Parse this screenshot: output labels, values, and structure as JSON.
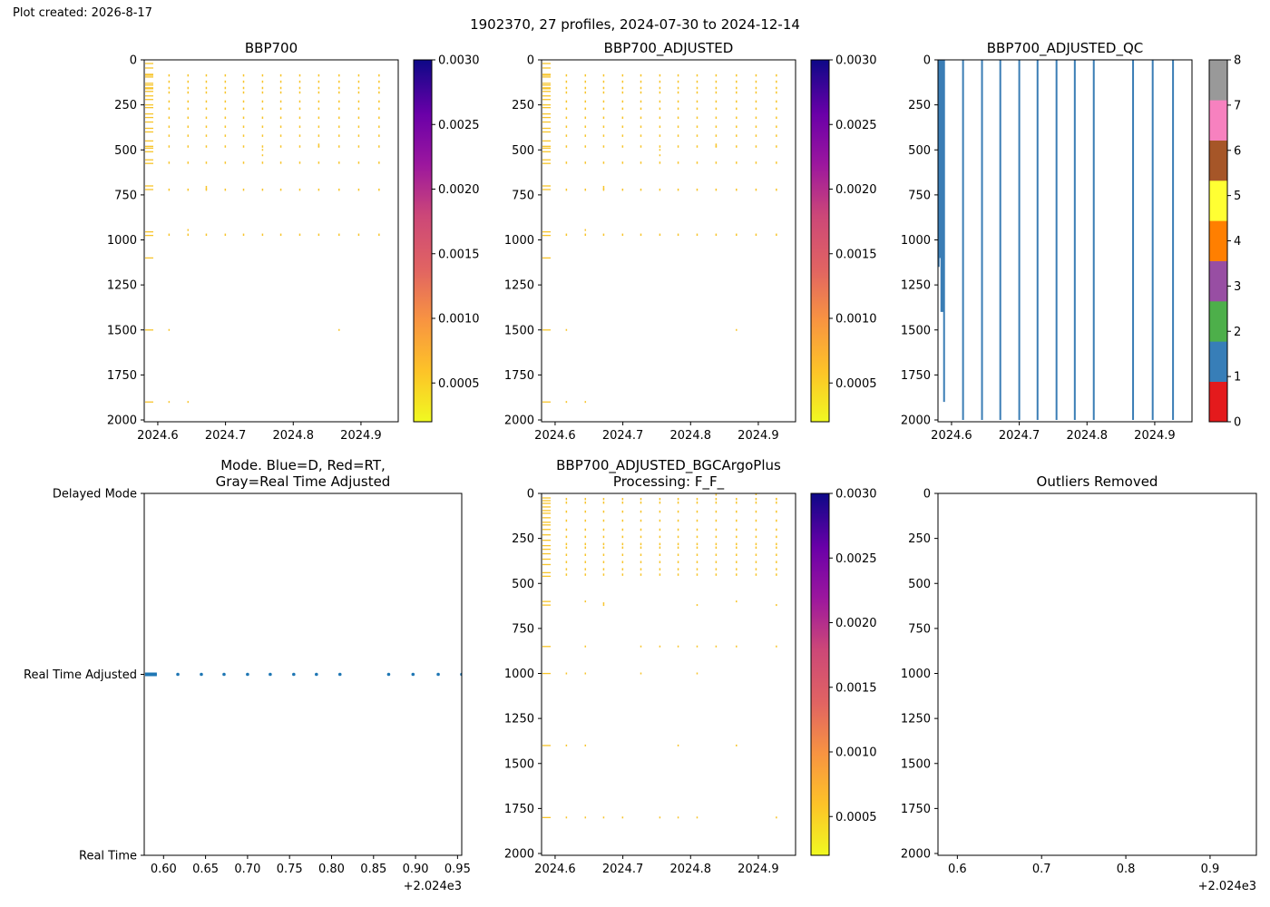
{
  "header": {
    "created": "Plot created: 2026-8-17",
    "suptitle": "1902370, 27 profiles, 2024-07-30 to 2024-12-14"
  },
  "colors": {
    "axis": "#000000",
    "data_yellow": "#f7c42a",
    "mode_blue": "#1f77b4",
    "qc_line": "#3a7db5"
  },
  "chart_data": [
    {
      "id": "bbp700",
      "type": "heatmap",
      "title": "BBP700",
      "xlim": [
        2024.58,
        2024.955
      ],
      "ylim": [
        2010,
        0
      ],
      "x_ticks": [
        2024.6,
        2024.7,
        2024.8,
        2024.9
      ],
      "x_tick_labels": [
        "2024.6",
        "2024.7",
        "2024.8",
        "2024.9"
      ],
      "y_ticks": [
        0,
        250,
        500,
        750,
        1000,
        1250,
        1500,
        1750,
        2000
      ],
      "y_tick_labels": [
        "0",
        "250",
        "500",
        "750",
        "1000",
        "1250",
        "1500",
        "1750",
        "2000"
      ],
      "colorbar": {
        "colormap": "plasma_r",
        "range": [
          0.0002,
          0.003
        ],
        "ticks": [
          0.0005,
          0.001,
          0.0015,
          0.002,
          0.0025,
          0.003
        ],
        "tick_labels": [
          "0.0005",
          "0.0010",
          "0.0015",
          "0.0020",
          "0.0025",
          "0.0030"
        ]
      },
      "profile_dates": [
        2024.617,
        2024.645,
        2024.672,
        2024.7,
        2024.727,
        2024.755,
        2024.782,
        2024.81,
        2024.838,
        2024.868,
        2024.897,
        2024.927
      ],
      "profile_depths": [
        85,
        120,
        155,
        180,
        230,
        270,
        320,
        370,
        420,
        480,
        570,
        720,
        970
      ],
      "dense_depths": [
        20,
        45,
        80,
        85,
        95,
        130,
        140,
        155,
        160,
        175,
        200,
        220,
        250,
        265,
        300,
        320,
        345,
        380,
        400,
        450,
        480,
        490,
        510,
        555,
        575,
        700,
        720,
        955,
        975,
        1100,
        1500,
        1900
      ],
      "extra_points": [
        [
          2024.617,
          1500
        ],
        [
          2024.617,
          1900
        ],
        [
          2024.645,
          1900
        ],
        [
          2024.868,
          1500
        ],
        [
          2024.645,
          945
        ],
        [
          2024.755,
          500
        ],
        [
          2024.755,
          530
        ],
        [
          2024.838,
          470
        ],
        [
          2024.838,
          480
        ],
        [
          2024.672,
          705
        ],
        [
          2024.672,
          715
        ]
      ]
    },
    {
      "id": "bbp700_adjusted",
      "type": "heatmap",
      "title": "BBP700_ADJUSTED",
      "xlim": [
        2024.58,
        2024.955
      ],
      "ylim": [
        2010,
        0
      ],
      "x_ticks": [
        2024.6,
        2024.7,
        2024.8,
        2024.9
      ],
      "x_tick_labels": [
        "2024.6",
        "2024.7",
        "2024.8",
        "2024.9"
      ],
      "y_ticks": [
        0,
        250,
        500,
        750,
        1000,
        1250,
        1500,
        1750,
        2000
      ],
      "y_tick_labels": [
        "0",
        "250",
        "500",
        "750",
        "1000",
        "1250",
        "1500",
        "1750",
        "2000"
      ],
      "colorbar": {
        "colormap": "plasma_r",
        "range": [
          0.0002,
          0.003
        ],
        "ticks": [
          0.0005,
          0.001,
          0.0015,
          0.002,
          0.0025,
          0.003
        ],
        "tick_labels": [
          "0.0005",
          "0.0010",
          "0.0015",
          "0.0020",
          "0.0025",
          "0.0030"
        ]
      },
      "profile_dates": [
        2024.617,
        2024.645,
        2024.672,
        2024.7,
        2024.727,
        2024.755,
        2024.782,
        2024.81,
        2024.838,
        2024.868,
        2024.897,
        2024.927
      ],
      "profile_depths": [
        85,
        120,
        155,
        180,
        230,
        270,
        320,
        370,
        420,
        480,
        570,
        720,
        970
      ],
      "dense_depths": [
        20,
        45,
        80,
        85,
        95,
        130,
        140,
        155,
        160,
        175,
        200,
        220,
        250,
        265,
        300,
        320,
        345,
        380,
        400,
        450,
        480,
        490,
        510,
        555,
        575,
        700,
        720,
        955,
        975,
        1100,
        1500,
        1900
      ],
      "extra_points": [
        [
          2024.617,
          1500
        ],
        [
          2024.617,
          1900
        ],
        [
          2024.645,
          1900
        ],
        [
          2024.868,
          1500
        ],
        [
          2024.645,
          945
        ],
        [
          2024.755,
          500
        ],
        [
          2024.755,
          530
        ],
        [
          2024.838,
          470
        ],
        [
          2024.838,
          480
        ],
        [
          2024.672,
          705
        ],
        [
          2024.672,
          715
        ]
      ]
    },
    {
      "id": "bbp700_adjusted_qc",
      "type": "line",
      "title": "BBP700_ADJUSTED_QC",
      "xlim": [
        2024.58,
        2024.955
      ],
      "ylim": [
        2010,
        0
      ],
      "x_ticks": [
        2024.6,
        2024.7,
        2024.8,
        2024.9
      ],
      "x_tick_labels": [
        "2024.6",
        "2024.7",
        "2024.8",
        "2024.9"
      ],
      "y_ticks": [
        0,
        250,
        500,
        750,
        1000,
        1250,
        1500,
        1750,
        2000
      ],
      "y_tick_labels": [
        "0",
        "250",
        "500",
        "750",
        "1000",
        "1250",
        "1500",
        "1750",
        "2000"
      ],
      "qc_profiles": [
        [
          2024.581,
          1150
        ],
        [
          2024.583,
          1100
        ],
        [
          2024.585,
          1400
        ],
        [
          2024.587,
          1400
        ],
        [
          2024.589,
          1900
        ],
        [
          2024.617,
          2000
        ],
        [
          2024.645,
          2000
        ],
        [
          2024.672,
          2000
        ],
        [
          2024.7,
          2000
        ],
        [
          2024.727,
          2000
        ],
        [
          2024.755,
          2000
        ],
        [
          2024.782,
          2000
        ],
        [
          2024.81,
          2000
        ],
        [
          2024.868,
          2000
        ],
        [
          2024.897,
          2000
        ],
        [
          2024.927,
          2000
        ]
      ],
      "colorbar": {
        "type": "discrete",
        "range": [
          0,
          8
        ],
        "ticks": [
          0,
          1,
          2,
          3,
          4,
          5,
          6,
          7,
          8
        ],
        "tick_labels": [
          "0",
          "1",
          "2",
          "3",
          "4",
          "5",
          "6",
          "7",
          "8"
        ],
        "colors": [
          "#e41a1c",
          "#377eb8",
          "#4daf4a",
          "#984ea3",
          "#ff7f00",
          "#ffff33",
          "#a65628",
          "#f781bf",
          "#999999"
        ]
      }
    },
    {
      "id": "mode",
      "type": "scatter",
      "title": "Mode. Blue=D, Red=RT,\nGray=Real Time Adjusted",
      "xlim": [
        0.577,
        0.955
      ],
      "ylim": [
        0,
        2
      ],
      "x_ticks": [
        0.6,
        0.65,
        0.7,
        0.75,
        0.8,
        0.85,
        0.9,
        0.95
      ],
      "x_tick_labels": [
        "0.60",
        "0.65",
        "0.70",
        "0.75",
        "0.80",
        "0.85",
        "0.90",
        "0.95"
      ],
      "x_offset_label": "+2.024e3",
      "y_ticks": [
        0,
        1,
        2
      ],
      "y_tick_labels": [
        "Real Time",
        "Real Time Adjusted",
        "Delayed Mode"
      ],
      "x": [
        0.58,
        0.582,
        0.584,
        0.586,
        0.588,
        0.59,
        0.617,
        0.645,
        0.672,
        0.7,
        0.727,
        0.755,
        0.782,
        0.81,
        0.868,
        0.897,
        0.927,
        0.955
      ],
      "y": [
        1,
        1,
        1,
        1,
        1,
        1,
        1,
        1,
        1,
        1,
        1,
        1,
        1,
        1,
        1,
        1,
        1,
        1
      ]
    },
    {
      "id": "bgcargoplus",
      "type": "heatmap",
      "title": "BBP700_ADJUSTED_BGCArgoPlus\nProcessing: F_F_",
      "xlim": [
        2024.58,
        2024.955
      ],
      "ylim": [
        2010,
        0
      ],
      "x_ticks": [
        2024.6,
        2024.7,
        2024.8,
        2024.9
      ],
      "x_tick_labels": [
        "2024.6",
        "2024.7",
        "2024.8",
        "2024.9"
      ],
      "y_ticks": [
        0,
        250,
        500,
        750,
        1000,
        1250,
        1500,
        1750,
        2000
      ],
      "y_tick_labels": [
        "0",
        "250",
        "500",
        "750",
        "1000",
        "1250",
        "1500",
        "1750",
        "2000"
      ],
      "colorbar": {
        "colormap": "plasma_r",
        "range": [
          0.0002,
          0.003
        ],
        "ticks": [
          0.0005,
          0.001,
          0.0015,
          0.002,
          0.0025,
          0.003
        ],
        "tick_labels": [
          "0.0005",
          "0.0010",
          "0.0015",
          "0.0020",
          "0.0025",
          "0.0030"
        ]
      },
      "profile_dates": [
        2024.617,
        2024.645,
        2024.672,
        2024.7,
        2024.727,
        2024.755,
        2024.782,
        2024.81,
        2024.838,
        2024.868,
        2024.897,
        2024.927
      ],
      "profile_depths": [
        30,
        50,
        100,
        150,
        200,
        240,
        280,
        300,
        340,
        380,
        420,
        450
      ],
      "dense_depths": [
        25,
        40,
        55,
        75,
        95,
        110,
        135,
        160,
        175,
        200,
        230,
        260,
        290,
        310,
        335,
        365,
        395,
        440,
        460,
        600,
        620,
        850,
        1000,
        1400,
        1800
      ],
      "extra_points": [
        [
          2024.617,
          1000
        ],
        [
          2024.645,
          1000
        ],
        [
          2024.727,
          1000
        ],
        [
          2024.81,
          1000
        ],
        [
          2024.617,
          1400
        ],
        [
          2024.645,
          1400
        ],
        [
          2024.782,
          1400
        ],
        [
          2024.868,
          1400
        ],
        [
          2024.617,
          1800
        ],
        [
          2024.645,
          1800
        ],
        [
          2024.672,
          1800
        ],
        [
          2024.7,
          1800
        ],
        [
          2024.755,
          1800
        ],
        [
          2024.782,
          1800
        ],
        [
          2024.81,
          1800
        ],
        [
          2024.927,
          1800
        ],
        [
          2024.645,
          850
        ],
        [
          2024.727,
          850
        ],
        [
          2024.755,
          850
        ],
        [
          2024.782,
          850
        ],
        [
          2024.81,
          850
        ],
        [
          2024.838,
          850
        ],
        [
          2024.868,
          850
        ],
        [
          2024.927,
          850
        ],
        [
          2024.645,
          600
        ],
        [
          2024.672,
          610
        ],
        [
          2024.672,
          620
        ],
        [
          2024.81,
          620
        ],
        [
          2024.868,
          600
        ],
        [
          2024.927,
          620
        ],
        [
          2024.838,
          8
        ],
        [
          2024.897,
          5
        ],
        [
          2024.927,
          30
        ]
      ]
    },
    {
      "id": "outliers",
      "type": "scatter",
      "title": "Outliers Removed",
      "xlim": [
        0.577,
        0.955
      ],
      "ylim": [
        2010,
        0
      ],
      "x_ticks": [
        0.6,
        0.7,
        0.8,
        0.9
      ],
      "x_tick_labels": [
        "0.6",
        "0.7",
        "0.8",
        "0.9"
      ],
      "x_offset_label": "+2.024e3",
      "y_ticks": [
        0,
        250,
        500,
        750,
        1000,
        1250,
        1500,
        1750,
        2000
      ],
      "y_tick_labels": [
        "0",
        "250",
        "500",
        "750",
        "1000",
        "1250",
        "1500",
        "1750",
        "2000"
      ],
      "x": [],
      "y": []
    }
  ]
}
